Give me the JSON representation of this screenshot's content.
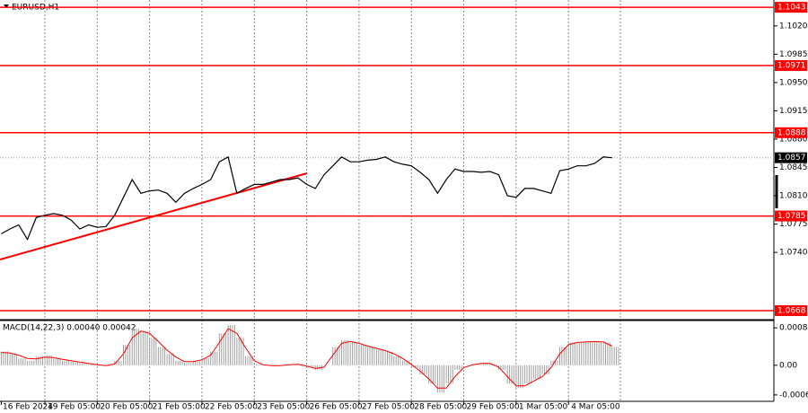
{
  "chart_data": [
    {
      "type": "line",
      "title": "EURUSD,H1",
      "color": "#000000",
      "categories": [
        "16 Feb 2024",
        null,
        null,
        null,
        null,
        "19 Feb 05:00",
        null,
        null,
        null,
        null,
        null,
        "20 Feb 05:00",
        null,
        null,
        null,
        null,
        null,
        "21 Feb 05:00",
        null,
        null,
        null,
        null,
        null,
        "22 Feb 05:00",
        null,
        null,
        null,
        null,
        null,
        "23 Feb 05:00",
        null,
        null,
        null,
        null,
        null,
        "26 Feb 05:00",
        null,
        null,
        null,
        null,
        null,
        "27 Feb 05:00",
        null,
        null,
        null,
        null,
        null,
        "28 Feb 05:00",
        null,
        null,
        null,
        null,
        null,
        "29 Feb 05:00",
        null,
        null,
        null,
        null,
        null,
        "1 Mar 05:00",
        null,
        null,
        null,
        null,
        null,
        "4 Mar 05:00",
        null,
        null,
        null,
        null,
        null
      ],
      "values": [
        1.0763,
        1.0769,
        1.0774,
        1.0756,
        1.0783,
        1.0786,
        1.0788,
        1.0786,
        1.078,
        1.0769,
        1.0774,
        1.0771,
        1.0772,
        1.0786,
        1.0808,
        1.083,
        1.0813,
        1.0816,
        1.0817,
        1.0813,
        1.0802,
        1.0813,
        1.0819,
        1.0824,
        1.083,
        1.0852,
        1.0858,
        1.0813,
        1.0819,
        1.0824,
        1.0824,
        1.0827,
        1.083,
        1.083,
        1.0832,
        1.0824,
        1.0819,
        1.0836,
        1.0847,
        1.0858,
        1.0852,
        1.0852,
        1.0854,
        1.0855,
        1.0858,
        1.0852,
        1.0849,
        1.0847,
        1.0839,
        1.083,
        1.0813,
        1.083,
        1.0843,
        1.084,
        1.084,
        1.0839,
        1.084,
        1.0836,
        1.081,
        1.0808,
        1.0819,
        1.0819,
        1.0816,
        1.0813,
        1.0841,
        1.0843,
        1.0847,
        1.0847,
        1.085,
        1.0858,
        1.0857
      ],
      "levels": [
        1.1043,
        1.0971,
        1.0888,
        1.0785,
        1.0668
      ],
      "level_color": "#ff0000",
      "current_price": 1.0857,
      "ylim": [
        1.0658,
        1.1052
      ],
      "yticks": [
        {
          "value": 1.102,
          "label": "1.1020"
        },
        1.0985,
        {
          "value": 1.095,
          "label": "1.0950"
        },
        1.0915,
        {
          "value": 1.088,
          "label": "1.0880"
        },
        1.0845,
        {
          "value": 1.081,
          "label": "1.0810"
        },
        1.0775,
        {
          "value": 1.074,
          "label": "1.0740"
        }
      ]
    },
    {
      "type": "macd",
      "title": "MACD(14,22,3) 0.00040 0.00042",
      "color": "#a0a0a0",
      "signal_color": "#ff0000",
      "values": [
        0.0003,
        0.00025,
        0.00015,
        0.0001,
        0.0002,
        0.00022,
        0.00015,
        0.0001,
        8e-05,
        5e-05,
        3e-05,
        0,
        -2e-05,
        0.0001,
        0.00045,
        0.0008,
        0.00075,
        0.0006,
        0.0004,
        0.00025,
        0.0001,
        5e-05,
        0.0001,
        0.00015,
        0.0003,
        0.0007,
        0.00088,
        0.0006,
        0.0002,
        3e-05,
        0,
        -2e-05,
        0,
        2e-05,
        3e-05,
        -5e-05,
        -0.0001,
        0,
        0.0004,
        0.00055,
        0.0005,
        0.00045,
        0.0004,
        0.00035,
        0.0003,
        0.0002,
        0.0001,
        -5e-05,
        -0.0002,
        -0.0004,
        -0.0006,
        -0.0004,
        -0.0001,
        0,
        2e-05,
        5e-05,
        3e-05,
        -0.0001,
        -0.0004,
        -0.0005,
        -0.0004,
        -0.0003,
        -0.0002,
        0.0001,
        0.0004,
        0.0005,
        0.0005,
        0.00052,
        0.00052,
        0.0005,
        0.0004
      ],
      "signal": [
        0.00028,
        0.00027,
        0.00022,
        0.00015,
        0.00014,
        0.00018,
        0.00017,
        0.00013,
        0.0001,
        7e-05,
        4e-05,
        1e-05,
        -1e-05,
        3e-05,
        0.00025,
        0.0006,
        0.00075,
        0.0007,
        0.00052,
        0.00033,
        0.00018,
        8e-05,
        8e-05,
        0.00012,
        0.00022,
        0.0005,
        0.0008,
        0.0007,
        0.00038,
        0.0001,
        1e-05,
        -1e-05,
        -1e-05,
        1e-05,
        2e-05,
        -2e-05,
        -7e-05,
        -4e-05,
        0.00022,
        0.00048,
        0.00052,
        0.00048,
        0.00042,
        0.00037,
        0.00032,
        0.00025,
        0.00015,
        2e-05,
        -0.00013,
        -0.0003,
        -0.0005,
        -0.0005,
        -0.00025,
        -5e-05,
        1e-05,
        4e-05,
        4e-05,
        -4e-05,
        -0.00025,
        -0.00045,
        -0.00045,
        -0.00035,
        -0.00025,
        -5e-05,
        0.00025,
        0.00045,
        0.0005,
        0.00051,
        0.00052,
        0.00051,
        0.00042
      ],
      "ylim": [
        -0.00079,
        0.00096
      ],
      "yticks": [
        0.00082,
        {
          "value": 0,
          "label": "0.00"
        },
        -0.00065
      ]
    }
  ]
}
